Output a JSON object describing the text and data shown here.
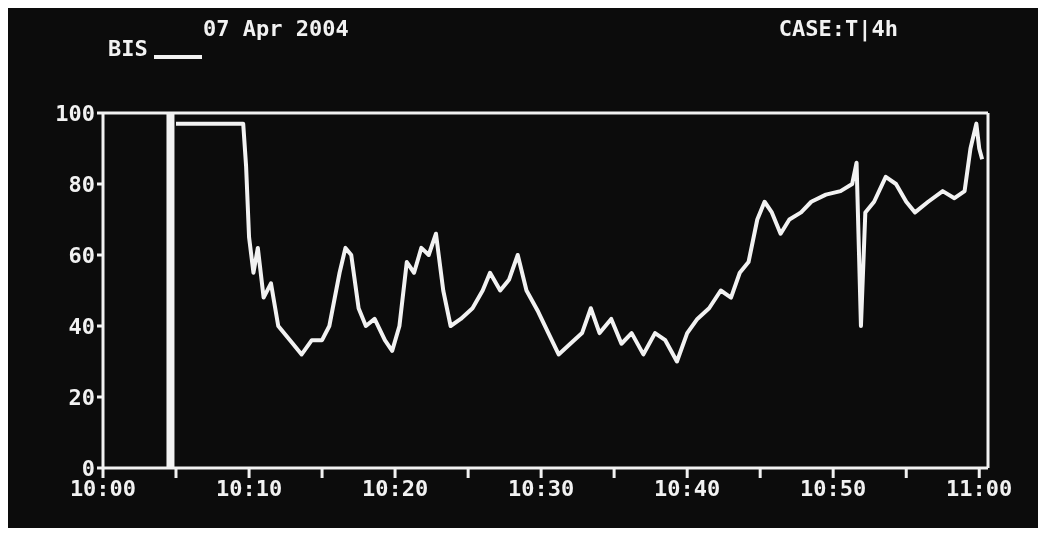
{
  "chart_data": {
    "type": "line",
    "title": "07 Apr 2004",
    "annotations": [
      "CASE:T|4h"
    ],
    "legend": "top left",
    "grid": false,
    "marker": "none",
    "line_style": "solid",
    "x": [
      10.0833,
      10.16,
      10.1633,
      10.1667,
      10.1717,
      10.1767,
      10.1833,
      10.1917,
      10.2,
      10.2167,
      10.2267,
      10.2383,
      10.25,
      10.2583,
      10.27,
      10.2767,
      10.2833,
      10.2917,
      10.3,
      10.31,
      10.3217,
      10.33,
      10.3383,
      10.3467,
      10.355,
      10.3633,
      10.3717,
      10.38,
      10.3883,
      10.3967,
      10.4083,
      10.4217,
      10.4333,
      10.4417,
      10.4533,
      10.4633,
      10.4733,
      10.4833,
      10.4967,
      10.5083,
      10.52,
      10.5333,
      10.5467,
      10.5567,
      10.5667,
      10.58,
      10.5917,
      10.6033,
      10.6167,
      10.63,
      10.6417,
      10.655,
      10.6667,
      10.6783,
      10.6917,
      10.705,
      10.7167,
      10.7267,
      10.7367,
      10.7467,
      10.755,
      10.7633,
      10.7733,
      10.7833,
      10.7967,
      10.8083,
      10.825,
      10.8417,
      10.855,
      10.86,
      10.865,
      10.87,
      10.88,
      10.8933,
      10.905,
      10.9167,
      10.9267,
      10.9417,
      10.9583,
      10.9717,
      10.9833,
      10.99,
      10.9967,
      11.0,
      11.0033
    ],
    "series": [
      {
        "name": "BIS",
        "color": "#f2f2f2",
        "values": [
          97,
          97,
          85,
          65,
          55,
          62,
          48,
          52,
          40,
          35,
          32,
          36,
          36,
          40,
          55,
          62,
          60,
          45,
          40,
          42,
          36,
          33,
          40,
          58,
          55,
          62,
          60,
          66,
          50,
          40,
          42,
          45,
          50,
          55,
          50,
          53,
          60,
          50,
          44,
          38,
          32,
          35,
          38,
          45,
          38,
          42,
          35,
          38,
          32,
          38,
          36,
          30,
          38,
          42,
          45,
          50,
          48,
          55,
          58,
          70,
          75,
          72,
          66,
          70,
          72,
          75,
          77,
          78,
          80,
          86,
          40,
          72,
          75,
          82,
          80,
          75,
          72,
          75,
          78,
          76,
          78,
          90,
          97,
          90,
          87
        ]
      }
    ],
    "xlim": [
      10,
      11.01
    ],
    "xticks": [
      {
        "value": 10,
        "label": "10:00"
      },
      {
        "value": 10.0833,
        "label": null
      },
      {
        "value": 10.1667,
        "label": "10:10"
      },
      {
        "value": 10.25,
        "label": null
      },
      {
        "value": 10.3333,
        "label": "10:20"
      },
      {
        "value": 10.4167,
        "label": null
      },
      {
        "value": 10.5,
        "label": "10:30"
      },
      {
        "value": 10.5833,
        "label": null
      },
      {
        "value": 10.6667,
        "label": "10:40"
      },
      {
        "value": 10.75,
        "label": null
      },
      {
        "value": 10.8333,
        "label": "10:50"
      },
      {
        "value": 10.9167,
        "label": null
      },
      {
        "value": 11,
        "label": "11:00"
      }
    ],
    "ylim": [
      0,
      100
    ],
    "yticks": [
      0,
      20,
      40,
      60,
      80,
      100
    ],
    "ref_lines": [
      {
        "axis": "x",
        "value": 10.077,
        "label": null,
        "color": "#f2f2f2"
      }
    ]
  }
}
